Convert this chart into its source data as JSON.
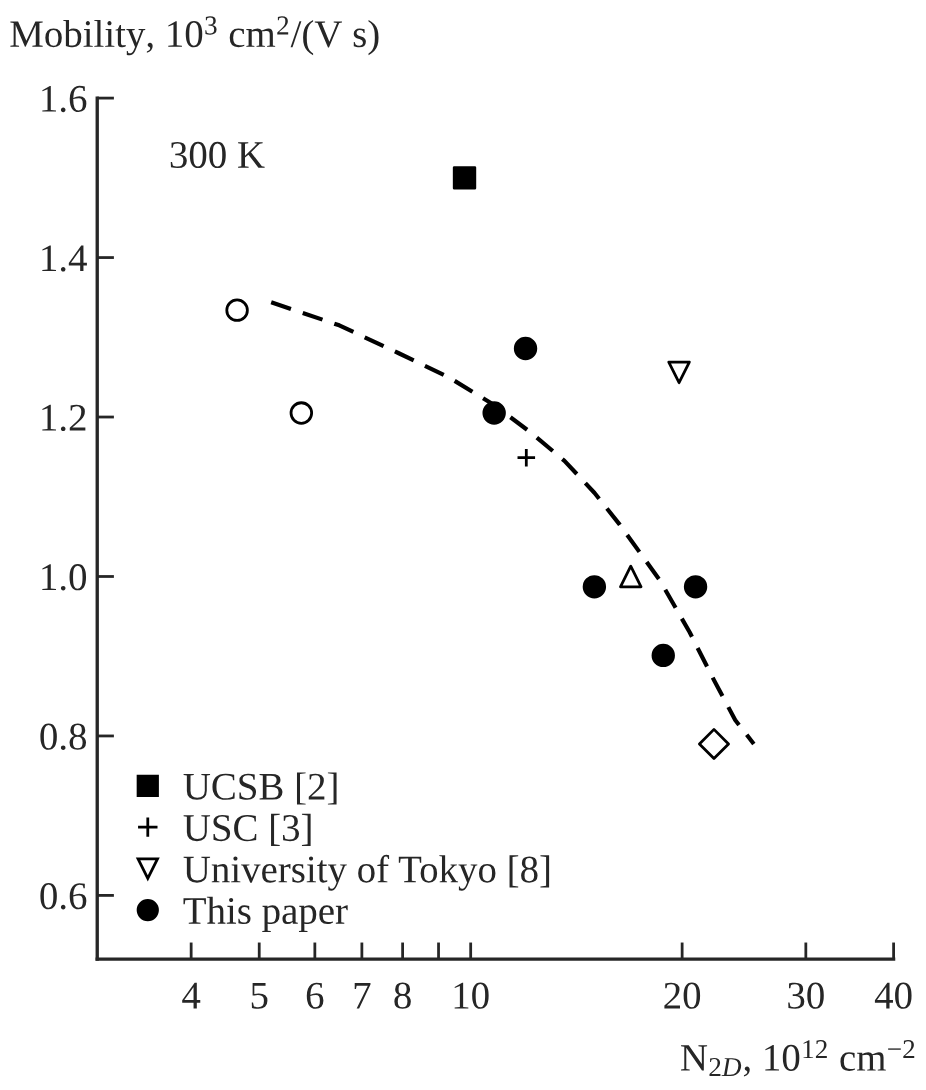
{
  "chart_data": {
    "type": "scatter",
    "xlabel": "N$_{2D}$, 10$^{12}$ cm$^{−2}$",
    "ylabel": "Mobility, 10$^{3}$ cm$^{2}$/(V s)",
    "log": "x",
    "xlim": [
      2.94,
      40
    ],
    "ylim": [
      0.52,
      1.6
    ],
    "xticks": [
      4,
      5,
      6,
      7,
      8,
      {
        "value": 9,
        "label": null
      },
      10,
      20,
      30,
      40
    ],
    "yticks": [
      0.6,
      0.8,
      {
        "value": 1.0,
        "label": "1.0"
      },
      1.2,
      1.4,
      1.6
    ],
    "grid": false,
    "legend": "bottom left",
    "annotations": [
      "300 K"
    ],
    "series": [
      {
        "color": "#ffffff",
        "marker": "circle",
        "x": [
          4.65,
          5.74
        ],
        "values": [
          1.334,
          1.205
        ]
      },
      {
        "name": "UCSB [2]",
        "color": "#000000",
        "marker": "square",
        "x": [
          9.8
        ],
        "values": [
          1.5
        ]
      },
      {
        "name": "USC [3]",
        "color": "#000000",
        "marker": "cross",
        "x": [
          12.0
        ],
        "values": [
          1.149
        ]
      },
      {
        "color": "#ffffff",
        "marker": "diamond",
        "x": [
          22.2
        ],
        "values": [
          0.79
        ]
      },
      {
        "color": "#ffffff",
        "marker": "triangle",
        "x": [
          16.9
        ],
        "values": [
          1.0
        ]
      },
      {
        "name": "University of Tokyo [8]",
        "color": "#ffffff",
        "marker": "triangle_down",
        "x": [
          19.8
        ],
        "values": [
          1.256
        ]
      },
      {
        "name": "This paper",
        "color": "#000000",
        "marker": "circle",
        "x": [
          11.97,
          10.8,
          15.0,
          20.9,
          18.8
        ],
        "values": [
          1.286,
          1.205,
          0.987,
          0.987,
          0.901
        ]
      },
      {
        "type": "line",
        "color": "#000000",
        "line_style": "dashed",
        "marker": "none",
        "x": [
          5.2,
          6.5,
          7.9,
          9.3,
          10.8,
          12.2,
          13.6,
          15.0,
          16.3,
          18.6,
          20.5,
          22.2,
          23.8,
          25.3
        ],
        "values": [
          1.344,
          1.315,
          1.28,
          1.25,
          1.215,
          1.18,
          1.145,
          1.105,
          1.065,
          0.995,
          0.93,
          0.87,
          0.82,
          0.79
        ]
      }
    ]
  }
}
